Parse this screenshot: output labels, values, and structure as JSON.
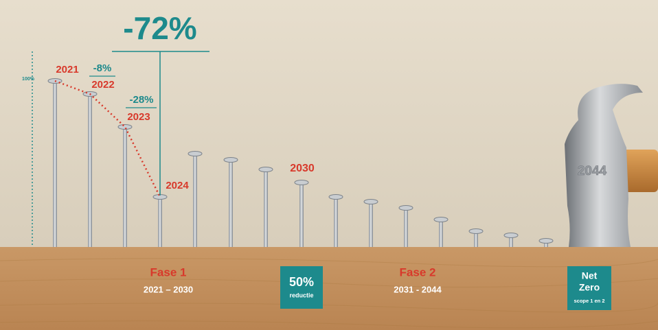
{
  "headline": "-72%",
  "axis_label": "100%",
  "years": {
    "y2021": "2021",
    "y2022": "2022",
    "y2023": "2023",
    "y2024": "2024",
    "y2030": "2030"
  },
  "steps": {
    "s1": "-8%",
    "s2": "-28%"
  },
  "phase1": {
    "title": "Fase 1",
    "period": "2021 – 2030"
  },
  "badge1": {
    "value": "50%",
    "label": "reductie"
  },
  "phase2": {
    "title": "Fase 2",
    "period": "2031 - 2044"
  },
  "badge2": {
    "line1": "Net",
    "line2": "Zero",
    "label": "scope 1 en 2"
  },
  "hammer": "2044"
}
